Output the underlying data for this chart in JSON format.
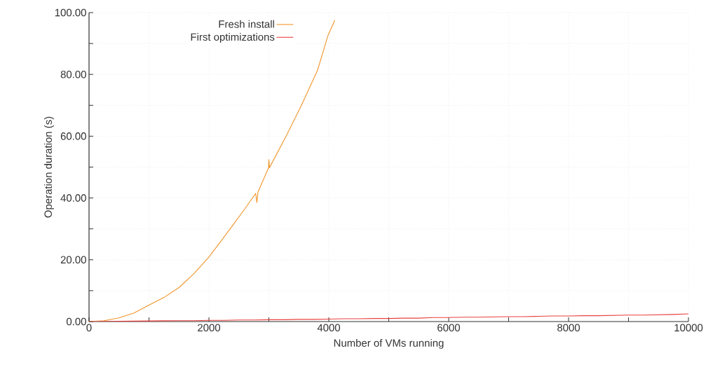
{
  "chart_data": {
    "type": "line",
    "xlabel": "Number of VMs running",
    "ylabel": "Operation duration (s)",
    "xlim": [
      0,
      10000
    ],
    "ylim": [
      0,
      100
    ],
    "xticks": [
      0,
      {
        "value": 1000,
        "label": null
      },
      2000,
      {
        "value": 3000,
        "label": null
      },
      4000,
      {
        "value": 5000,
        "label": null
      },
      6000,
      {
        "value": 7000,
        "label": null
      },
      8000,
      {
        "value": 9000,
        "label": null
      },
      10000
    ],
    "yticks": [
      {
        "value": 0,
        "label": "0.00"
      },
      {
        "value": 10,
        "label": null
      },
      {
        "value": 20,
        "label": "20.00"
      },
      {
        "value": 30,
        "label": null
      },
      {
        "value": 40,
        "label": "40.00"
      },
      {
        "value": 50,
        "label": null
      },
      {
        "value": 60,
        "label": "60.00"
      },
      {
        "value": 70,
        "label": null
      },
      {
        "value": 80,
        "label": "80.00"
      },
      {
        "value": 90,
        "label": null
      },
      {
        "value": 100,
        "label": "100.00"
      }
    ],
    "grid": true,
    "legend": "top left",
    "marker": "none",
    "line_style": "solid",
    "series": [
      {
        "name": "Fresh install",
        "color": "#f0952a",
        "x": [
          0,
          250,
          500,
          750,
          1006,
          1250,
          1500,
          1750,
          1988,
          2200,
          2410,
          2600,
          2780,
          2800,
          2820,
          2994,
          3000,
          3010,
          3287,
          3544,
          3813,
          3988,
          4100
        ],
        "values": [
          0,
          0.3,
          1.2,
          2.8,
          5.4,
          7.8,
          11,
          15.5,
          20.6,
          26,
          31.5,
          36.5,
          41.5,
          38.5,
          42,
          49.7,
          52.4,
          49.8,
          60,
          70,
          81.4,
          92.7,
          97.5
        ]
      },
      {
        "name": "First optimizations",
        "color": "#e8413e",
        "x": [
          0,
          250,
          500,
          750,
          1000,
          1250,
          1500,
          1750,
          2000,
          2250,
          2500,
          2750,
          3000,
          3250,
          3500,
          3750,
          4000,
          4250,
          4500,
          4750,
          5000,
          5250,
          5500,
          5750,
          6000,
          6250,
          6500,
          6750,
          7000,
          7250,
          7500,
          7750,
          8000,
          8250,
          8500,
          8750,
          9000,
          9250,
          9500,
          9750,
          10000
        ],
        "values": [
          0,
          0.05,
          0.1,
          0.15,
          0.2,
          0.25,
          0.3,
          0.3,
          0.4,
          0.4,
          0.5,
          0.5,
          0.6,
          0.6,
          0.7,
          0.7,
          0.8,
          0.9,
          0.9,
          1.0,
          1.0,
          1.1,
          1.1,
          1.3,
          1.3,
          1.4,
          1.4,
          1.5,
          1.6,
          1.6,
          1.7,
          1.8,
          1.8,
          1.9,
          1.9,
          2.0,
          2.1,
          2.1,
          2.2,
          2.3,
          2.5
        ]
      }
    ]
  }
}
